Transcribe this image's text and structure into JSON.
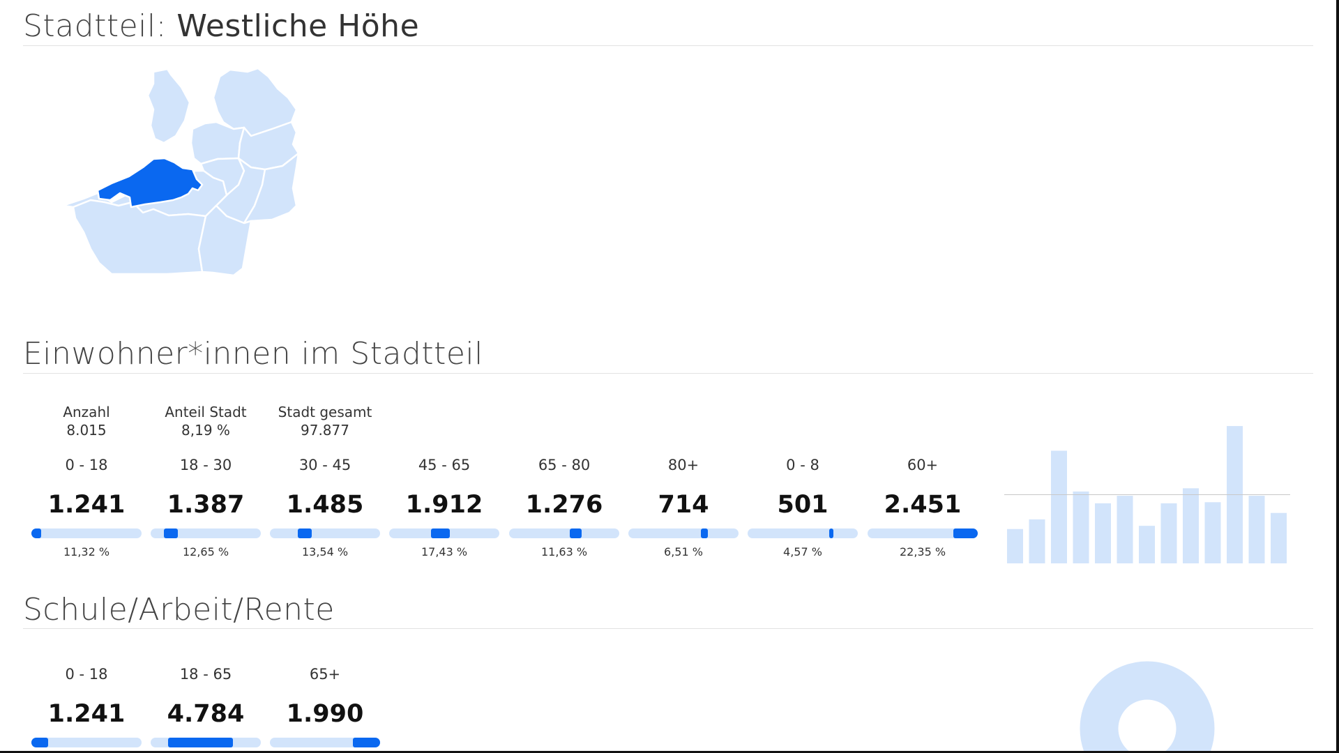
{
  "colors": {
    "accent": "#0a68f0",
    "light": "#d2e4fb",
    "text": "#333333"
  },
  "header": {
    "prefix": "Stadtteil:",
    "district": "Westliche Höhe"
  },
  "map": {
    "selected_district": "Westliche Höhe"
  },
  "residents": {
    "title": "Einwohner*innen im Stadtteil",
    "summary": [
      {
        "label": "Anzahl",
        "value": "8.015"
      },
      {
        "label": "Anteil Stadt",
        "value": "8,19 %"
      },
      {
        "label": "Stadt gesamt",
        "value": "97.877"
      }
    ],
    "groups": [
      {
        "label": "0 - 18",
        "value": "1.241",
        "percent": "11,32 %",
        "range_start": 0.0,
        "range_end": 0.09
      },
      {
        "label": "18 - 30",
        "value": "1.387",
        "percent": "12,65 %",
        "range_start": 0.12,
        "range_end": 0.25
      },
      {
        "label": "30 - 45",
        "value": "1.485",
        "percent": "13,54 %",
        "range_start": 0.25,
        "range_end": 0.38
      },
      {
        "label": "45 - 65",
        "value": "1.912",
        "percent": "17,43 %",
        "range_start": 0.38,
        "range_end": 0.55
      },
      {
        "label": "65 - 80",
        "value": "1.276",
        "percent": "11,63 %",
        "range_start": 0.55,
        "range_end": 0.66
      },
      {
        "label": "80+",
        "value": "714",
        "percent": "6,51 %",
        "range_start": 0.66,
        "range_end": 0.72
      },
      {
        "label": "0 - 8",
        "value": "501",
        "percent": "4,57 %",
        "range_start": 0.74,
        "range_end": 0.78
      },
      {
        "label": "60+",
        "value": "2.451",
        "percent": "22,35 %",
        "range_start": 0.78,
        "range_end": 1.0
      }
    ],
    "histogram": {
      "values": [
        3.2,
        4.1,
        10.5,
        6.7,
        5.6,
        6.3,
        3.5,
        5.6,
        7.0,
        5.7,
        12.8,
        6.3,
        4.7
      ],
      "reference": 6.4,
      "max": 13
    }
  },
  "school_work": {
    "title": "Schule/Arbeit/Rente",
    "groups": [
      {
        "label": "0 - 18",
        "value": "1.241",
        "range_start": 0.0,
        "range_end": 0.15
      },
      {
        "label": "18 - 65",
        "value": "4.784",
        "range_start": 0.16,
        "range_end": 0.75
      },
      {
        "label": "65+",
        "value": "1.990",
        "range_start": 0.75,
        "range_end": 1.0
      }
    ]
  }
}
